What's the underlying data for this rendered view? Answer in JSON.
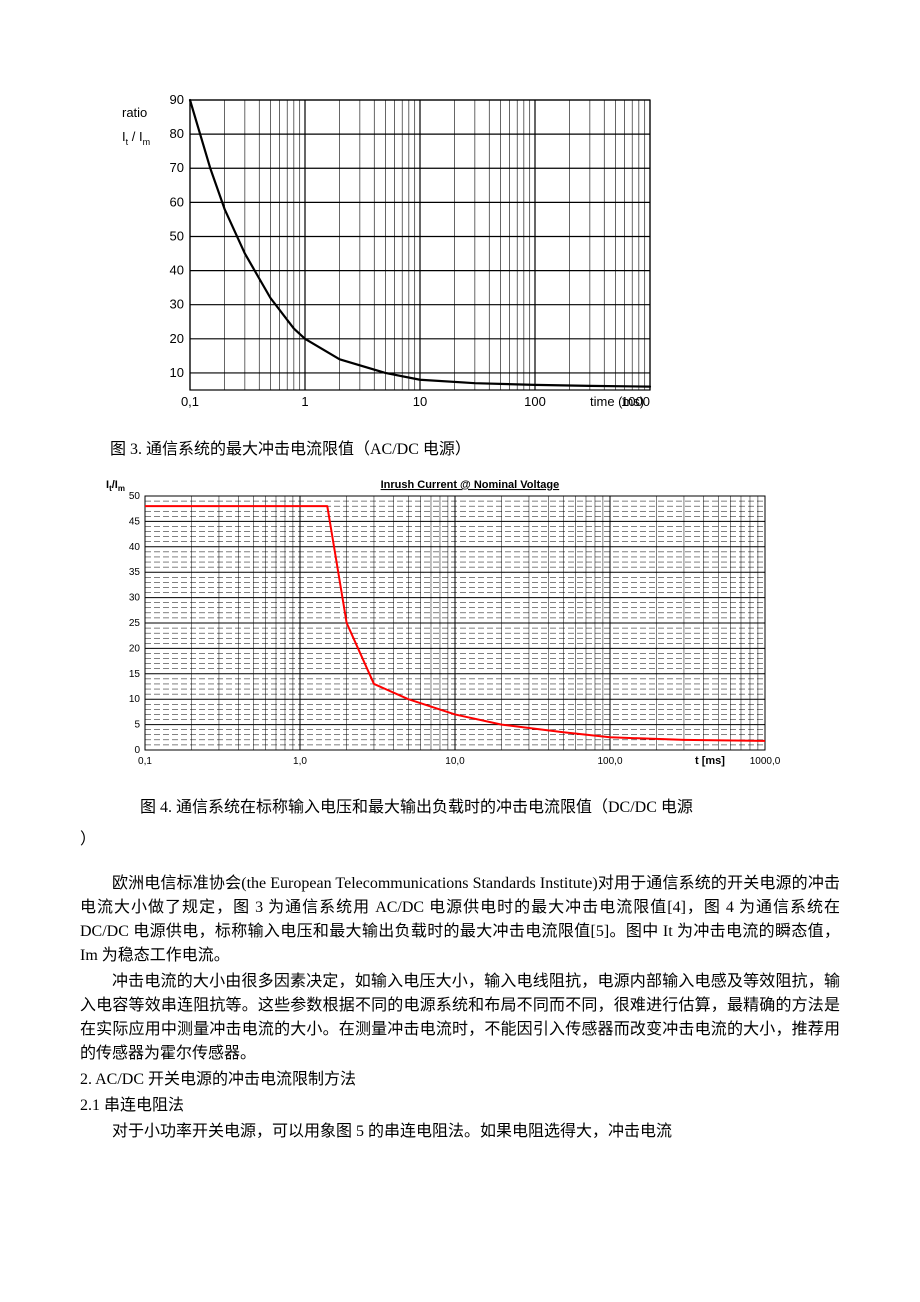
{
  "chart3": {
    "type": "line-logx",
    "ylabel_line1": "ratio",
    "ylabel_line2": "I",
    "ylabel_sub1": "t",
    "ylabel_slash": " / I",
    "ylabel_sub2": "m",
    "xlabel": "time (ms)",
    "x_decades": [
      0.1,
      1,
      10,
      100,
      1000
    ],
    "x_tick_labels": [
      "0,1",
      "1",
      "10",
      "100",
      "1000"
    ],
    "y_ticks": [
      10,
      20,
      30,
      40,
      50,
      60,
      70,
      80,
      90
    ],
    "ylim": [
      5,
      90
    ],
    "curve": [
      {
        "x": 0.1,
        "y": 90
      },
      {
        "x": 0.15,
        "y": 70
      },
      {
        "x": 0.2,
        "y": 58
      },
      {
        "x": 0.3,
        "y": 45
      },
      {
        "x": 0.5,
        "y": 32
      },
      {
        "x": 0.8,
        "y": 23
      },
      {
        "x": 1.0,
        "y": 20
      },
      {
        "x": 2.0,
        "y": 14
      },
      {
        "x": 5.0,
        "y": 10
      },
      {
        "x": 10.0,
        "y": 8
      },
      {
        "x": 30.0,
        "y": 7
      },
      {
        "x": 100.0,
        "y": 6.5
      },
      {
        "x": 300.0,
        "y": 6.2
      },
      {
        "x": 1000.0,
        "y": 6
      }
    ],
    "line_color": "#000000",
    "line_width": 2.2,
    "grid_color": "#000000",
    "grid_width_major": 1.2,
    "grid_width_minor": 0.6,
    "background": "#ffffff",
    "label_fontsize": 13,
    "tick_fontsize": 13
  },
  "caption3": "图 3.   通信系统的最大冲击电流限值（AC/DC 电源）",
  "chart4": {
    "type": "line-logx",
    "title": "Inrush Current @ Nominal Voltage",
    "ylabel_line1": "I",
    "ylabel_sub1": "t",
    "ylabel_slash": "/I",
    "ylabel_sub2": "m",
    "xlabel": "t [ms]",
    "x_decades": [
      0.1,
      1,
      10,
      100,
      1000
    ],
    "x_tick_labels": [
      "0,1",
      "1,0",
      "10,0",
      "100,0",
      "1000,0"
    ],
    "y_ticks": [
      0,
      5,
      10,
      15,
      20,
      25,
      30,
      35,
      40,
      45,
      50
    ],
    "ylim": [
      0,
      50
    ],
    "curve": [
      {
        "x": 0.1,
        "y": 48
      },
      {
        "x": 1.0,
        "y": 48
      },
      {
        "x": 1.5,
        "y": 48
      },
      {
        "x": 2.0,
        "y": 25
      },
      {
        "x": 3.0,
        "y": 13
      },
      {
        "x": 5.0,
        "y": 10
      },
      {
        "x": 10.0,
        "y": 7
      },
      {
        "x": 20.0,
        "y": 5
      },
      {
        "x": 50.0,
        "y": 3.5
      },
      {
        "x": 100.0,
        "y": 2.5
      },
      {
        "x": 300.0,
        "y": 2
      },
      {
        "x": 1000.0,
        "y": 1.8
      }
    ],
    "line_color": "#ff0000",
    "line_width": 2.0,
    "grid_color": "#000000",
    "grid_width_major": 1.0,
    "grid_width_minor": 0.5,
    "minor_y_lines_per_band": 4,
    "background": "#ffffff",
    "title_fontsize": 11,
    "tick_fontsize": 10,
    "label_fontsize": 11
  },
  "caption4": "图 4.   通信系统在标称输入电压和最大输出负载时的冲击电流限值（DC/DC 电源",
  "caption4_close": "）",
  "paragraph1": "欧洲电信标准协会(the European Telecommunications Standards Institute)对用于通信系统的开关电源的冲击电流大小做了规定，图 3 为通信系统用 AC/DC 电源供电时的最大冲击电流限值[4]，图 4 为通信系统在 DC/DC 电源供电，标称输入电压和最大输出负载时的最大冲击电流限值[5]。图中 It 为冲击电流的瞬态值，Im 为稳态工作电流。",
  "paragraph2": "冲击电流的大小由很多因素决定，如输入电压大小，输入电线阻抗，电源内部输入电感及等效阻抗，输入电容等效串连阻抗等。这些参数根据不同的电源系统和布局不同而不同，很难进行估算，最精确的方法是在实际应用中测量冲击电流的大小。在测量冲击电流时，不能因引入传感器而改变冲击电流的大小，推荐用的传感器为霍尔传感器。",
  "section2": "2. AC/DC 开关电源的冲击电流限制方法",
  "section21": "2.1 串连电阻法",
  "paragraph3": "对于小功率开关电源，可以用象图 5 的串连电阻法。如果电阻选得大，冲击电流"
}
